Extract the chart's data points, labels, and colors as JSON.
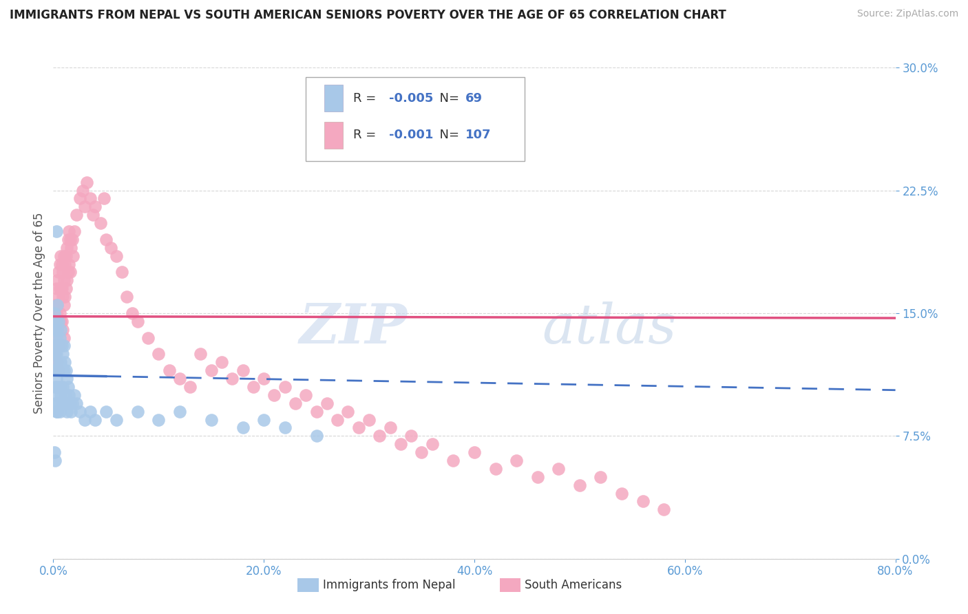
{
  "title": "IMMIGRANTS FROM NEPAL VS SOUTH AMERICAN SENIORS POVERTY OVER THE AGE OF 65 CORRELATION CHART",
  "source": "Source: ZipAtlas.com",
  "ylabel_label": "Seniors Poverty Over the Age of 65",
  "legend_label_nepal": "Immigrants from Nepal",
  "legend_label_sa": "South Americans",
  "nepal_color": "#a8c8e8",
  "sa_color": "#f4a8c0",
  "nepal_line_color": "#4472c4",
  "sa_line_color": "#e05080",
  "xlim": [
    0.0,
    0.8
  ],
  "ylim": [
    0.0,
    0.3
  ],
  "nepal_scatter_x": [
    0.001,
    0.001,
    0.001,
    0.001,
    0.002,
    0.002,
    0.002,
    0.002,
    0.002,
    0.003,
    0.003,
    0.003,
    0.003,
    0.003,
    0.003,
    0.004,
    0.004,
    0.004,
    0.004,
    0.004,
    0.005,
    0.005,
    0.005,
    0.005,
    0.006,
    0.006,
    0.006,
    0.006,
    0.007,
    0.007,
    0.007,
    0.008,
    0.008,
    0.008,
    0.009,
    0.009,
    0.01,
    0.01,
    0.01,
    0.011,
    0.011,
    0.012,
    0.012,
    0.013,
    0.013,
    0.014,
    0.015,
    0.016,
    0.017,
    0.018,
    0.02,
    0.022,
    0.025,
    0.03,
    0.035,
    0.04,
    0.05,
    0.06,
    0.08,
    0.1,
    0.12,
    0.15,
    0.18,
    0.2,
    0.22,
    0.25,
    0.001,
    0.002,
    0.003
  ],
  "nepal_scatter_y": [
    0.15,
    0.13,
    0.125,
    0.115,
    0.14,
    0.125,
    0.115,
    0.105,
    0.095,
    0.145,
    0.135,
    0.125,
    0.11,
    0.1,
    0.09,
    0.155,
    0.14,
    0.12,
    0.105,
    0.09,
    0.145,
    0.13,
    0.115,
    0.095,
    0.135,
    0.12,
    0.105,
    0.09,
    0.14,
    0.12,
    0.1,
    0.13,
    0.115,
    0.095,
    0.125,
    0.105,
    0.13,
    0.115,
    0.095,
    0.12,
    0.1,
    0.115,
    0.095,
    0.11,
    0.09,
    0.105,
    0.1,
    0.095,
    0.09,
    0.095,
    0.1,
    0.095,
    0.09,
    0.085,
    0.09,
    0.085,
    0.09,
    0.085,
    0.09,
    0.085,
    0.09,
    0.085,
    0.08,
    0.085,
    0.08,
    0.075,
    0.065,
    0.06,
    0.2
  ],
  "sa_scatter_x": [
    0.001,
    0.001,
    0.002,
    0.002,
    0.002,
    0.003,
    0.003,
    0.003,
    0.003,
    0.004,
    0.004,
    0.004,
    0.004,
    0.005,
    0.005,
    0.005,
    0.005,
    0.005,
    0.006,
    0.006,
    0.006,
    0.006,
    0.007,
    0.007,
    0.007,
    0.008,
    0.008,
    0.008,
    0.009,
    0.009,
    0.009,
    0.01,
    0.01,
    0.01,
    0.01,
    0.011,
    0.011,
    0.012,
    0.012,
    0.013,
    0.013,
    0.014,
    0.014,
    0.015,
    0.015,
    0.016,
    0.016,
    0.017,
    0.018,
    0.019,
    0.02,
    0.022,
    0.025,
    0.028,
    0.03,
    0.032,
    0.035,
    0.038,
    0.04,
    0.045,
    0.048,
    0.05,
    0.055,
    0.06,
    0.065,
    0.07,
    0.075,
    0.08,
    0.09,
    0.1,
    0.11,
    0.12,
    0.13,
    0.14,
    0.15,
    0.16,
    0.17,
    0.18,
    0.19,
    0.2,
    0.21,
    0.22,
    0.23,
    0.24,
    0.25,
    0.26,
    0.27,
    0.28,
    0.29,
    0.3,
    0.31,
    0.32,
    0.33,
    0.34,
    0.35,
    0.36,
    0.38,
    0.4,
    0.42,
    0.44,
    0.46,
    0.48,
    0.5,
    0.52,
    0.54,
    0.56,
    0.58
  ],
  "sa_scatter_y": [
    0.145,
    0.13,
    0.155,
    0.14,
    0.125,
    0.165,
    0.15,
    0.135,
    0.12,
    0.17,
    0.155,
    0.14,
    0.12,
    0.175,
    0.16,
    0.145,
    0.13,
    0.115,
    0.18,
    0.165,
    0.15,
    0.13,
    0.185,
    0.165,
    0.145,
    0.18,
    0.165,
    0.145,
    0.175,
    0.16,
    0.14,
    0.185,
    0.17,
    0.155,
    0.135,
    0.18,
    0.16,
    0.185,
    0.165,
    0.19,
    0.17,
    0.195,
    0.175,
    0.2,
    0.18,
    0.195,
    0.175,
    0.19,
    0.195,
    0.185,
    0.2,
    0.21,
    0.22,
    0.225,
    0.215,
    0.23,
    0.22,
    0.21,
    0.215,
    0.205,
    0.22,
    0.195,
    0.19,
    0.185,
    0.175,
    0.16,
    0.15,
    0.145,
    0.135,
    0.125,
    0.115,
    0.11,
    0.105,
    0.125,
    0.115,
    0.12,
    0.11,
    0.115,
    0.105,
    0.11,
    0.1,
    0.105,
    0.095,
    0.1,
    0.09,
    0.095,
    0.085,
    0.09,
    0.08,
    0.085,
    0.075,
    0.08,
    0.07,
    0.075,
    0.065,
    0.07,
    0.06,
    0.065,
    0.055,
    0.06,
    0.05,
    0.055,
    0.045,
    0.05,
    0.04,
    0.035,
    0.03
  ],
  "nepal_trend_x": [
    0.0,
    0.8
  ],
  "nepal_trend_y": [
    0.112,
    0.103
  ],
  "sa_trend_x": [
    0.0,
    0.8
  ],
  "sa_trend_y": [
    0.148,
    0.147
  ],
  "watermark_zip": "ZIP",
  "watermark_atlas": "atlas",
  "background_color": "#ffffff",
  "grid_color": "#cccccc",
  "tick_color": "#5b9bd5",
  "axis_label_color": "#555555"
}
